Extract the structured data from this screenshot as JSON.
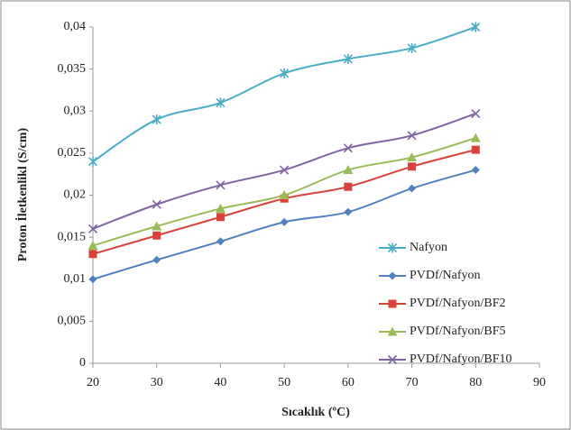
{
  "chart_data": {
    "type": "line",
    "x_label": "Sıcaklık (ºC)",
    "y_label": "Proton İletkenlikl (S/cm)",
    "x": [
      20,
      30,
      40,
      50,
      60,
      70,
      80
    ],
    "xlim": [
      20,
      90
    ],
    "xticks": [
      20,
      30,
      40,
      50,
      60,
      70,
      80,
      90
    ],
    "ylim": [
      0,
      0.04
    ],
    "yticks": [
      0,
      {
        "value": 0.005,
        "label": "0,005"
      },
      {
        "value": 0.01,
        "label": "0,01"
      },
      {
        "value": 0.015,
        "label": "0,015"
      },
      {
        "value": 0.02,
        "label": "0,02"
      },
      {
        "value": 0.025,
        "label": "0,025"
      },
      {
        "value": 0.03,
        "label": "0,03"
      },
      {
        "value": 0.035,
        "label": "0,035"
      },
      {
        "value": 0.04,
        "label": "0,04"
      }
    ],
    "grid": false,
    "legend": "lower-right",
    "series": [
      {
        "name": "Nafyon",
        "color": "#4bacc6",
        "marker": "asterisk",
        "values": [
          0.024,
          0.029,
          0.031,
          0.0345,
          0.0362,
          0.0375,
          0.04
        ]
      },
      {
        "name": "PVDf/Nafyon",
        "color": "#4f81bd",
        "marker": "diamond",
        "values": [
          0.01,
          0.0123,
          0.0145,
          0.0168,
          0.018,
          0.0208,
          0.023
        ]
      },
      {
        "name": "PVDf/Nafyon/BF2",
        "color": "#d9423a",
        "marker": "square",
        "values": [
          0.013,
          0.0152,
          0.0174,
          0.0196,
          0.021,
          0.0234,
          0.0254
        ]
      },
      {
        "name": "PVDf/Nafyon/BF5",
        "color": "#9bbb59",
        "marker": "triangle",
        "values": [
          0.014,
          0.0163,
          0.0184,
          0.02,
          0.023,
          0.0245,
          0.0268
        ]
      },
      {
        "name": "PVDf/Nafyon/BF10",
        "color": "#8064a2",
        "marker": "x",
        "values": [
          0.016,
          0.0189,
          0.0212,
          0.023,
          0.0256,
          0.0271,
          0.0297
        ]
      }
    ]
  }
}
